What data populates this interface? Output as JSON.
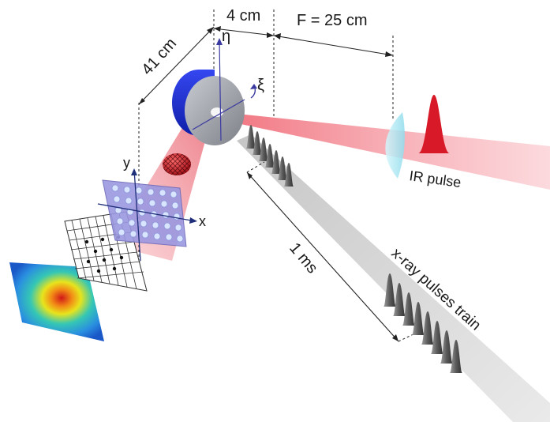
{
  "labels": {
    "dist_41": "41 cm",
    "dist_4": "4 cm",
    "focal": "F = 25 cm",
    "eta": "η",
    "xi": "ξ",
    "axis_y": "y",
    "axis_x": "x",
    "ir_pulse": "IR pulse",
    "interval": "1 ms",
    "xray_train": "x-ray pulses train"
  },
  "colors": {
    "ir_beam": "#e8192c",
    "xray_beam": "#c9c9c9",
    "disk_body": "#1c2ed8",
    "disk_face": "#9a9ca3",
    "lens": "#b6ecf6",
    "grid_plate": "#8c8cd8",
    "ir_pulse": "#d81a28"
  },
  "icons": {
    "phase_modulator": "sphere-mesh-icon",
    "sample": "rotating-disk-icon",
    "lens": "focusing-lens-icon",
    "detector": "intensity-map-icon"
  }
}
